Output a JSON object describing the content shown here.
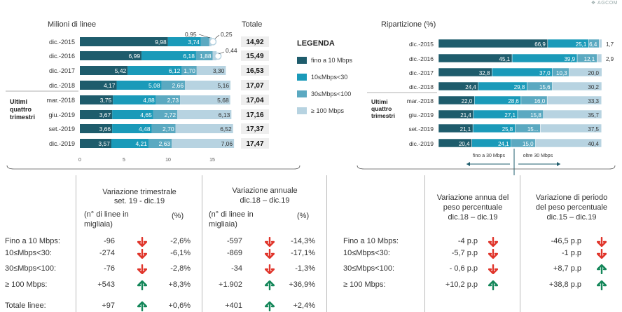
{
  "logo": {
    "text": "AGCOM"
  },
  "colors": {
    "c1": "#1e5c6c",
    "c2": "#1a9ab9",
    "c3": "#5ba9c1",
    "c4": "#b7d3e1",
    "up": "#15875a",
    "down": "#e0352b"
  },
  "left_chart": {
    "title": "Milioni di linee",
    "total_header": "Totale",
    "group_label": [
      "Ultimi",
      "quattro",
      "trimestri"
    ]
  },
  "legend": {
    "title": "LEGENDA",
    "items": [
      "fino a 10 Mbps",
      "10≤Mbps<30",
      "30≤Mbps<100",
      "≥ 100 Mbps"
    ]
  },
  "right_chart": {
    "title": "Ripartizione (%)",
    "group_label": [
      "Ultimi",
      "quattro",
      "trimestri"
    ],
    "arrow_labels": [
      "fino a 30 Mbps",
      "oltre 30 Mbps"
    ]
  },
  "chart_data": [
    {
      "type": "bar",
      "orientation": "horizontal",
      "stacked": true,
      "title": "Milioni di linee",
      "categories": [
        "dic.-2015",
        "dic.-2016",
        "dic.-2017",
        "dic.-2018",
        "mar.-2018",
        "giu.-2019",
        "set.-2019",
        "dic.-2019"
      ],
      "series": [
        {
          "name": "fino a 10 Mbps",
          "values": [
            9.98,
            6.99,
            5.42,
            4.17,
            3.75,
            3.67,
            3.66,
            3.57
          ],
          "labels": [
            "9,98",
            "6,99",
            "5,42",
            "4,17",
            "3,75",
            "3,67",
            "3,66",
            "3,57"
          ]
        },
        {
          "name": "10≤Mbps<30",
          "values": [
            3.74,
            6.18,
            6.12,
            5.08,
            4.88,
            4.65,
            4.48,
            4.21
          ],
          "labels": [
            "3,74",
            "6,18",
            "6,12",
            "5,08",
            "4,88",
            "4,65",
            "4,48",
            "4,21"
          ]
        },
        {
          "name": "30≤Mbps<100",
          "values": [
            0.95,
            1.88,
            1.7,
            2.66,
            2.73,
            2.72,
            2.7,
            2.63
          ],
          "labels": [
            "0,95",
            "1,88",
            "1,70",
            "2,66",
            "2,73",
            "2,72",
            "2,70",
            "2,63"
          ]
        },
        {
          "name": "≥ 100 Mbps",
          "values": [
            0.25,
            0.44,
            3.3,
            5.16,
            5.68,
            6.13,
            6.52,
            7.06
          ],
          "labels": [
            "0,25",
            "0,44",
            "3,30",
            "5,16",
            "5,68",
            "6,13",
            "6,52",
            "7,06"
          ]
        }
      ],
      "totals": [
        "14,92",
        "15,49",
        "16,53",
        "17,07",
        "17,04",
        "17,16",
        "17,37",
        "17,47"
      ],
      "xlim": [
        0,
        17.5
      ],
      "xticks": [
        "0",
        "5",
        "10",
        "15"
      ]
    },
    {
      "type": "bar",
      "orientation": "horizontal",
      "stacked": true,
      "title": "Ripartizione (%)",
      "categories": [
        "dic.-2015",
        "dic.-2016",
        "dic.-2017",
        "dic.-2018",
        "mar.-2018",
        "giu.-2019",
        "set.-2019",
        "dic.-2019"
      ],
      "series": [
        {
          "name": "fino a 10 Mbps",
          "values": [
            66.9,
            45.1,
            32.8,
            24.4,
            22.0,
            21.4,
            21.1,
            20.4
          ],
          "labels": [
            "66,9",
            "45,1",
            "32,8",
            "24,4",
            "22,0",
            "21,4",
            "21,1",
            "20,4"
          ]
        },
        {
          "name": "10≤Mbps<30",
          "values": [
            25.1,
            39.9,
            37.0,
            29.8,
            28.6,
            27.1,
            25.8,
            24.1
          ],
          "labels": [
            "25,1",
            "39,9",
            "37,0",
            "29,8",
            "28,6",
            "27,1",
            "25,8",
            "24,1"
          ]
        },
        {
          "name": "30≤Mbps<100",
          "values": [
            6.4,
            12.1,
            10.3,
            15.6,
            16.0,
            15.8,
            15.5,
            15.0
          ],
          "labels": [
            "6,4",
            "12,1",
            "10,3",
            "15,6",
            "16,0",
            "15,8",
            "15...",
            "15,0"
          ]
        },
        {
          "name": "≥ 100 Mbps",
          "values": [
            1.7,
            2.9,
            20.0,
            30.2,
            33.3,
            35.7,
            37.5,
            40.4
          ],
          "labels": [
            "1,7",
            "2,9",
            "20,0",
            "30,2",
            "33,3",
            "35,7",
            "37,5",
            "40,4"
          ]
        }
      ],
      "xlim": [
        0,
        100
      ]
    }
  ],
  "table_left": {
    "header_trim": [
      "Variazione trimestrale",
      "set. 19 - dic.19"
    ],
    "header_ann": [
      "Variazione annuale",
      "dic.18 – dic.19"
    ],
    "sub_lines": "(n° di linee in",
    "sub_thousand": "migliaia)",
    "sub_pct": "(%)",
    "rows": [
      {
        "label": "Fino a 10 Mbps:",
        "q_n": "-96",
        "q_dir": "down",
        "q_p": "-2,6%",
        "a_n": "-597",
        "a_dir": "down",
        "a_p": "-14,3%"
      },
      {
        "label": "10≤Mbps<30:",
        "q_n": "-274",
        "q_dir": "down",
        "q_p": "-6,1%",
        "a_n": "-869",
        "a_dir": "down",
        "a_p": "-17,1%"
      },
      {
        "label": "30≤Mbps<100:",
        "q_n": "-76",
        "q_dir": "down",
        "q_p": "-2,8%",
        "a_n": "-34",
        "a_dir": "down",
        "a_p": "-1,3%"
      },
      {
        "label": "≥ 100 Mbps:",
        "q_n": "+543",
        "q_dir": "up",
        "q_p": "+8,3%",
        "a_n": "+1.902",
        "a_dir": "up",
        "a_p": "+36,9%"
      },
      {
        "label": "Totale linee:",
        "q_n": "+97",
        "q_dir": "up",
        "q_p": "+0,6%",
        "a_n": "+401",
        "a_dir": "up",
        "a_p": "+2,4%"
      }
    ]
  },
  "table_right": {
    "header_a": [
      "Variazione annua del",
      "peso percentuale",
      "dic.18 – dic.19"
    ],
    "header_b": [
      "Variazione di periodo",
      "del peso percentuale",
      "dic.15 – dic.19"
    ],
    "rows": [
      {
        "label": "Fino a 10 Mbps:",
        "a": "-4 p.p",
        "a_dir": "down",
        "b": "-46,5 p.p",
        "b_dir": "down"
      },
      {
        "label": "10≤Mbps<30:",
        "a": "-5,7 p.p",
        "a_dir": "down",
        "b": "-1 p.p",
        "b_dir": "down"
      },
      {
        "label": "30≤Mbps<100:",
        "a": "- 0,6 p.p",
        "a_dir": "down",
        "b": "+8,7 p.p",
        "b_dir": "up"
      },
      {
        "label": "≥ 100 Mbps:",
        "a": "+10,2 p.p",
        "a_dir": "up",
        "b": "+38,8 p.p",
        "b_dir": "up"
      }
    ]
  }
}
